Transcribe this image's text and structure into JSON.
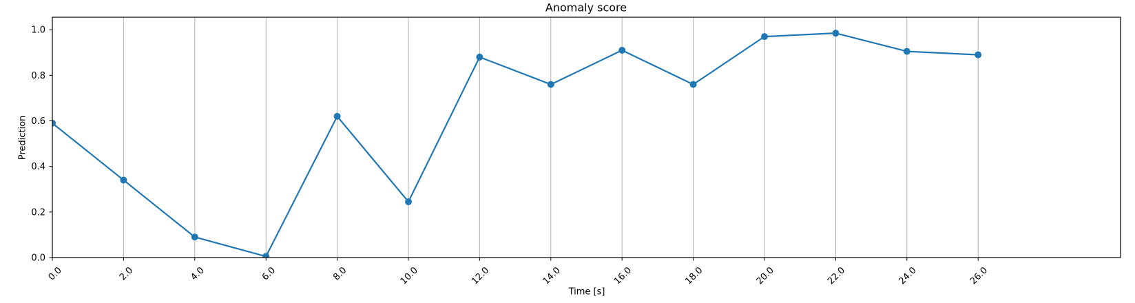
{
  "figure": {
    "title": "Anomaly score"
  },
  "chart_data": {
    "type": "line",
    "title": "Anomaly score",
    "xlabel": "Time [s]",
    "ylabel": "Prediction",
    "x": [
      0,
      2,
      4,
      6,
      8,
      10,
      12,
      14,
      16,
      18,
      20,
      22,
      24,
      26
    ],
    "y": [
      0.59,
      0.34,
      0.09,
      0.005,
      0.62,
      0.245,
      0.88,
      0.76,
      0.91,
      0.76,
      0.97,
      0.985,
      0.905,
      0.89
    ],
    "series": [
      {
        "name": "Anomaly score",
        "color": "#1f77b4",
        "marker": "circle"
      }
    ],
    "xlim": [
      0,
      30
    ],
    "ylim": [
      0,
      1.055
    ],
    "x_ticks": [
      0,
      2,
      4,
      6,
      8,
      10,
      12,
      14,
      16,
      18,
      20,
      22,
      24,
      26
    ],
    "x_tick_labels": [
      "0.0",
      "2.0",
      "4.0",
      "6.0",
      "8.0",
      "10.0",
      "12.0",
      "14.0",
      "16.0",
      "18.0",
      "20.0",
      "22.0",
      "24.0",
      "26.0"
    ],
    "x_tick_rotation_deg": 45,
    "y_ticks": [
      0.0,
      0.2,
      0.4,
      0.6,
      0.8,
      1.0
    ],
    "y_tick_labels": [
      "0.0",
      "0.2",
      "0.4",
      "0.6",
      "0.8",
      "1.0"
    ],
    "grid": "vertical-only",
    "grid_color": "#b0b0b0",
    "spine_color": "#000000",
    "background_color": "#ffffff",
    "legend": "none"
  }
}
